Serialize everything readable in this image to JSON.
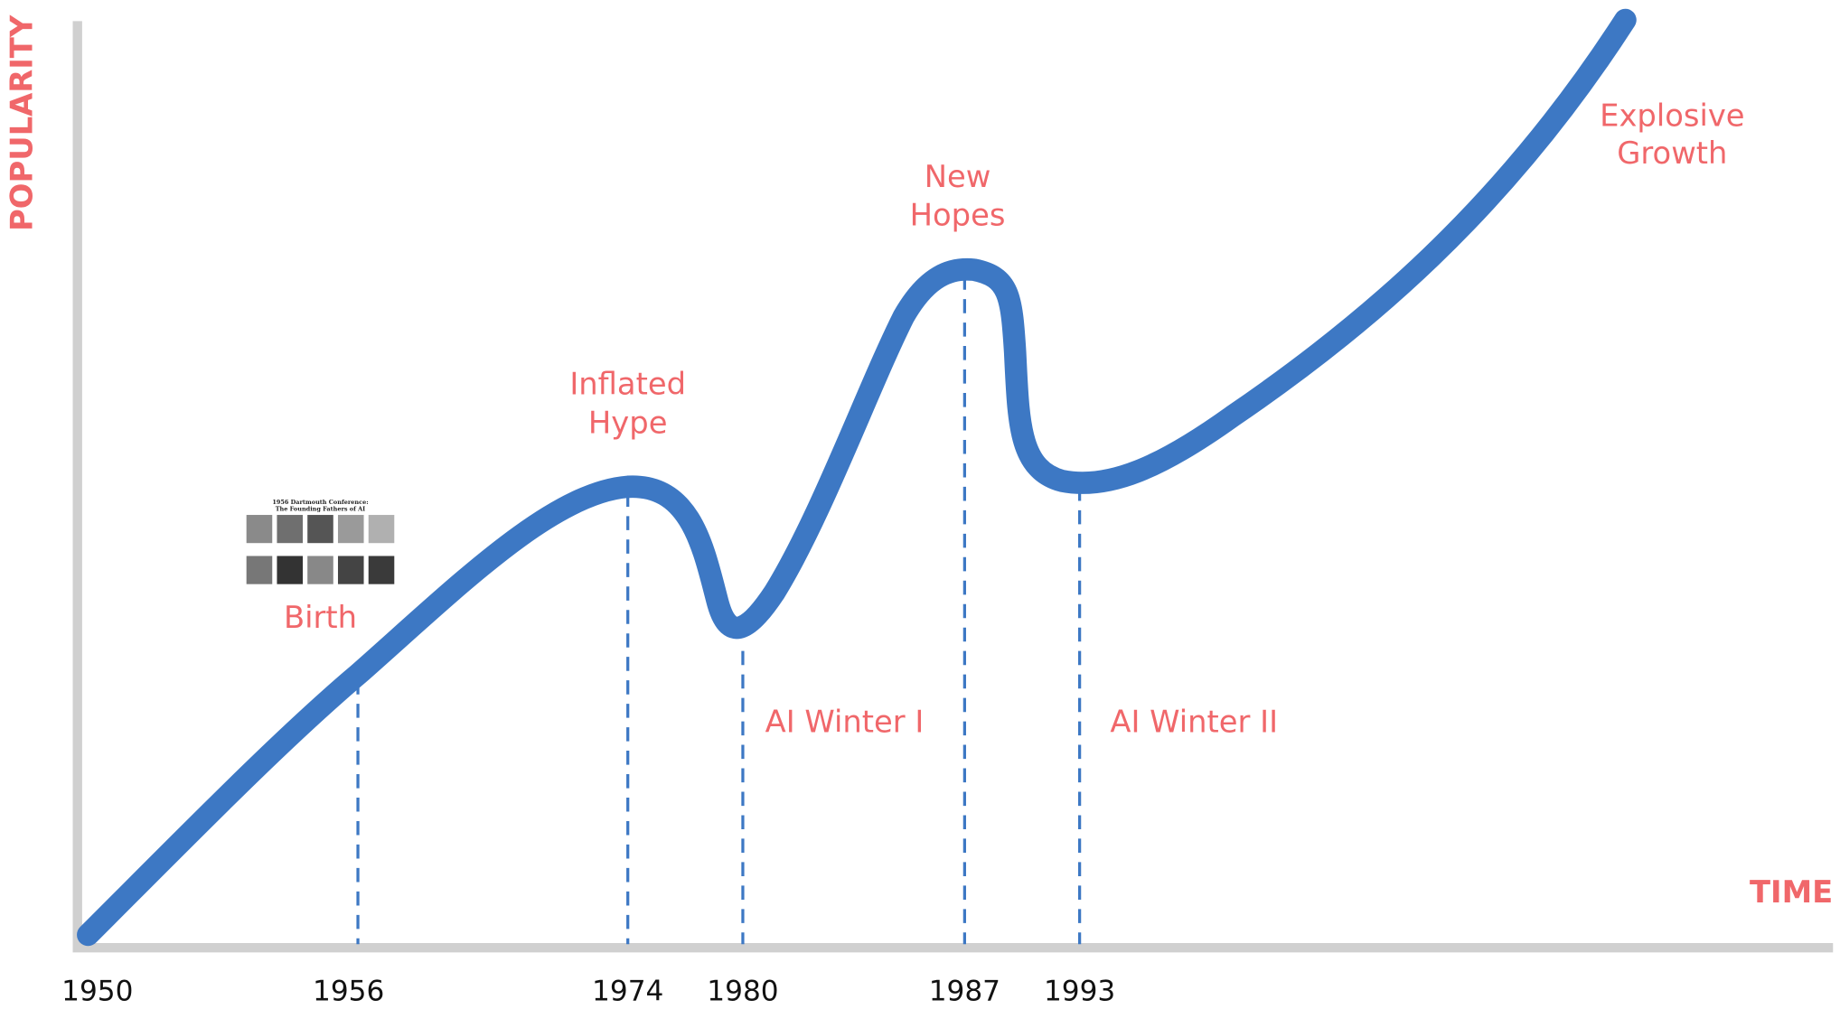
{
  "axes": {
    "y_label": "POPULARITY",
    "x_label": "TIME"
  },
  "years": [
    "1950",
    "1956",
    "1974",
    "1980",
    "1987",
    "1993"
  ],
  "stages": [
    {
      "lines": [
        "Birth"
      ]
    },
    {
      "lines": [
        "Inflated",
        "Hype"
      ]
    },
    {
      "lines": [
        "AI Winter I"
      ]
    },
    {
      "lines": [
        "New",
        "Hopes"
      ]
    },
    {
      "lines": [
        "AI Winter II"
      ]
    },
    {
      "lines": [
        "Explosive",
        "Growth"
      ]
    }
  ],
  "photo": {
    "lines": [
      "1956 Dartmouth Conference:",
      "The Founding Fathers of AI"
    ]
  }
}
